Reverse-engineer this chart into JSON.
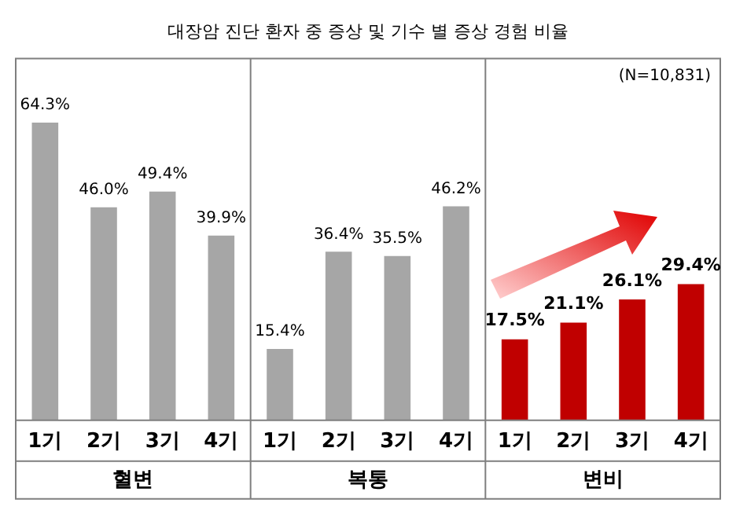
{
  "chart_data": {
    "type": "bar",
    "title": "대장암 진단 환자 중 증상 및 기수 별 증상 경험 비율",
    "categories": [
      "1기",
      "2기",
      "3기",
      "4기",
      "1기",
      "2기",
      "3기",
      "4기",
      "1기",
      "2기",
      "3기",
      "4기"
    ],
    "series": [
      {
        "name": "혈변",
        "color": "#a6a6a6",
        "values": [
          64.3,
          46.0,
          49.4,
          39.9,
          null,
          null,
          null,
          null,
          null,
          null,
          null,
          null
        ],
        "value_labels": [
          "64.3%",
          "46.0%",
          "49.4%",
          "39.9%",
          null,
          null,
          null,
          null,
          null,
          null,
          null,
          null
        ]
      },
      {
        "name": "복통",
        "color": "#a6a6a6",
        "values": [
          null,
          null,
          null,
          null,
          15.4,
          36.4,
          35.5,
          46.2,
          null,
          null,
          null,
          null
        ],
        "value_labels": [
          null,
          null,
          null,
          null,
          "15.4%",
          "36.4%",
          "35.5%",
          "46.2%",
          null,
          null,
          null,
          null
        ]
      },
      {
        "name": "변비",
        "color": "#c00000",
        "values": [
          null,
          null,
          null,
          null,
          null,
          null,
          null,
          null,
          17.5,
          21.1,
          26.1,
          29.4
        ],
        "value_labels": [
          null,
          null,
          null,
          null,
          null,
          null,
          null,
          null,
          "17.5%",
          "21.1%",
          "26.1%",
          "29.4%"
        ]
      }
    ],
    "annotations": [
      "(N=10,831)"
    ],
    "grid": false,
    "legend": false
  }
}
